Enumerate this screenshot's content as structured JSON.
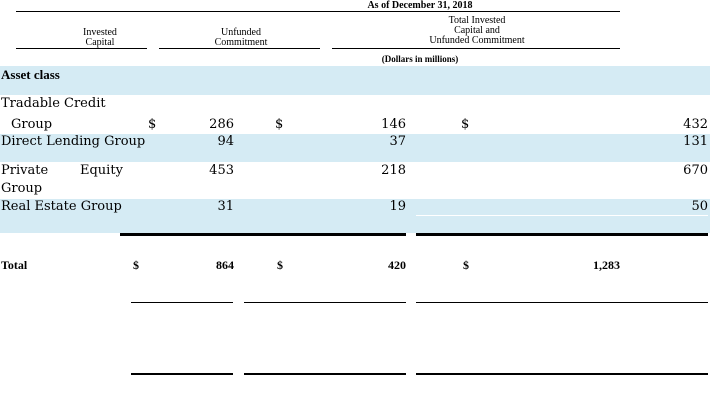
{
  "header": {
    "period": "As of December 31, 2018",
    "col_invested": [
      "Invested",
      "Capital"
    ],
    "col_unfunded": [
      "Unfunded",
      "Commitment"
    ],
    "col_total": [
      "Total Invested",
      "Capital and",
      "Unfunded Commitment"
    ],
    "units": "(Dollars in millions)"
  },
  "section_label": "Asset class",
  "rows": [
    {
      "name_line1": "Tradable Credit",
      "name_line2": "Group",
      "cur1": "$",
      "invested": "286",
      "cur2": "$",
      "unfunded": "146",
      "cur3": "$",
      "total": "432"
    },
    {
      "name_line1": "Direct Lending Group",
      "invested": "94",
      "unfunded": "37",
      "total": "131"
    },
    {
      "name_line1": "Private",
      "name_mid": "Equity",
      "name_line2": "Group",
      "invested": "453",
      "unfunded": "218",
      "total": "670"
    },
    {
      "name_line1": "Real Estate Group",
      "invested": "31",
      "unfunded": "19",
      "total": "50"
    }
  ],
  "total_row": {
    "label": "Total",
    "cur1": "$",
    "invested": "864",
    "cur2": "$",
    "unfunded": "420",
    "cur3": "$",
    "total": "1,283"
  }
}
